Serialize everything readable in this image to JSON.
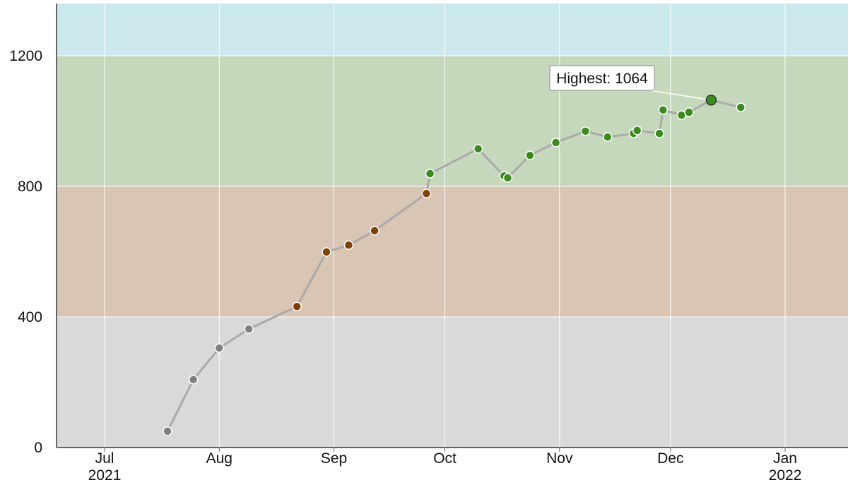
{
  "chart_data": {
    "type": "line",
    "x": [
      "2021-07-18",
      "2021-07-25",
      "2021-08-01",
      "2021-08-09",
      "2021-08-22",
      "2021-08-30",
      "2021-09-05",
      "2021-09-12",
      "2021-09-26",
      "2021-09-27",
      "2021-10-10",
      "2021-10-17",
      "2021-10-18",
      "2021-10-24",
      "2021-10-31",
      "2021-11-08",
      "2021-11-14",
      "2021-11-21",
      "2021-11-22",
      "2021-11-28",
      "2021-11-29",
      "2021-12-04",
      "2021-12-06",
      "2021-12-12",
      "2021-12-20"
    ],
    "values": [
      50,
      208,
      305,
      363,
      432,
      599,
      620,
      664,
      778,
      839,
      915,
      832,
      826,
      895,
      934,
      969,
      951,
      962,
      971,
      962,
      1034,
      1018,
      1027,
      1064,
      1042
    ],
    "line_color": "#aaaaaa",
    "xlim": [
      "2021-06-18",
      "2022-01-18"
    ],
    "xticks": [
      {
        "value": "2021-07-01",
        "label": [
          "Jul",
          "2021"
        ]
      },
      {
        "value": "2021-08-01",
        "label": [
          "Aug"
        ]
      },
      {
        "value": "2021-09-01",
        "label": [
          "Sep"
        ]
      },
      {
        "value": "2021-10-01",
        "label": [
          "Oct"
        ]
      },
      {
        "value": "2021-11-01",
        "label": [
          "Nov"
        ]
      },
      {
        "value": "2021-12-01",
        "label": [
          "Dec"
        ]
      },
      {
        "value": "2022-01-01",
        "label": [
          "Jan",
          "2022"
        ]
      }
    ],
    "ylim": [
      0,
      1360
    ],
    "yticks": [
      0,
      400,
      800,
      1200
    ],
    "grid": true,
    "bands": [
      {
        "from": 0,
        "color": "#d9d9d9",
        "point_color": "#808080"
      },
      {
        "from": 400,
        "color": "#d8c5b3",
        "point_color": "#804000"
      },
      {
        "from": 800,
        "color": "#c5d8bb",
        "point_color": "#3b8a1e"
      },
      {
        "from": 1200,
        "color": "#cbe9ec",
        "point_color": "#00c0c0"
      }
    ],
    "annotation": "Highest: 1064"
  }
}
